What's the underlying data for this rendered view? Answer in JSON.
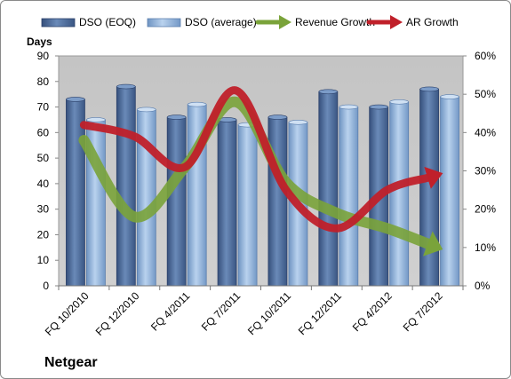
{
  "chart_data": {
    "type": "bar",
    "categories": [
      "FQ 10/2010",
      "FQ 12/2010",
      "FQ 4/2011",
      "FQ 7/2011",
      "FQ 10/2011",
      "FQ 12/2011",
      "FQ 4/2012",
      "FQ 7/2012"
    ],
    "series": [
      {
        "name": "DSO (EOQ)",
        "type": "bar",
        "axis": "left",
        "values": [
          73,
          78,
          66,
          65,
          66,
          76,
          70,
          77
        ],
        "color": "#4f6e9e"
      },
      {
        "name": "DSO (average)",
        "type": "bar",
        "axis": "left",
        "values": [
          65,
          69,
          71,
          63,
          64,
          70,
          72,
          74
        ],
        "color": "#92b4da"
      },
      {
        "name": "Revenue Growth",
        "type": "line-arrow",
        "axis": "right",
        "values": [
          0.38,
          0.18,
          0.31,
          0.48,
          0.27,
          0.19,
          0.15,
          0.1
        ],
        "color": "#7aa33a"
      },
      {
        "name": "AR Growth",
        "type": "line-arrow",
        "axis": "right",
        "values": [
          0.42,
          0.39,
          0.31,
          0.51,
          0.25,
          0.15,
          0.25,
          0.29
        ],
        "color": "#c0202a"
      }
    ],
    "ylabel": "Days",
    "ylim": [
      0,
      90
    ],
    "yticks": [
      "0",
      "10",
      "20",
      "30",
      "40",
      "50",
      "60",
      "70",
      "80",
      "90"
    ],
    "y2lim": [
      0,
      0.6
    ],
    "y2ticks": [
      "0%",
      "10%",
      "20%",
      "30%",
      "40%",
      "50%",
      "60%"
    ],
    "legend_position": "top",
    "grid": false,
    "plot_background": "#c8c8c8"
  },
  "footer": {
    "company": "Netgear"
  }
}
